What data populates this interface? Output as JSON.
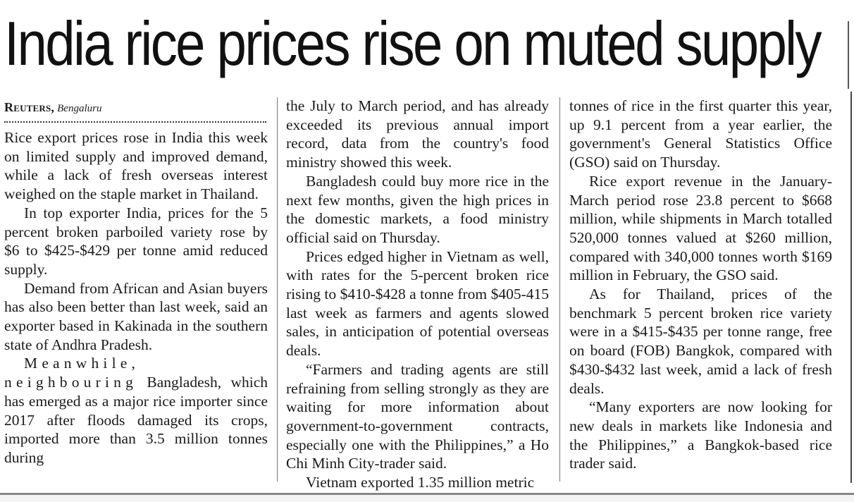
{
  "article": {
    "headline": "India rice prices rise on muted supply",
    "byline_agency": "Reuters,",
    "byline_city": "Bengaluru"
  },
  "col1": {
    "p1": "Rice export prices rose in India this week on limited supply and improved demand, while a lack of fresh overseas interest weighed on the staple market in Thailand.",
    "p2": "In top exporter India, prices for the 5 percent broken parboiled variety rose by $6 to $425-$429 per tonne amid reduced supply.",
    "p3": "Demand from African and Asian buyers has also been better than last week, said an exporter based in Kakinada in the southern state of Andhra Pradesh.",
    "p4_lead": "Meanwhile, neighbouring",
    "p4_rest": "Bangladesh, which has emerged as a major rice importer since 2017 after floods damaged its crops, imported more than 3.5 million tonnes during"
  },
  "col2": {
    "p1": "the July to March period, and has already exceeded its previous annual import record, data from the country's food ministry showed this week.",
    "p2": "Bangladesh could buy more rice in the next few months, given the high prices in the domestic markets, a food ministry official said on Thursday.",
    "p3": "Prices edged higher in Vietnam as well, with rates for the 5-percent broken rice rising to $410-$428 a tonne from $405-415 last week as farmers and agents slowed sales, in anticipation of potential overseas deals.",
    "p4": "“Farmers and trading agents are still refraining from selling strongly as they are waiting for more information about government-to-government contracts, especially one with the Philippines,” a Ho Chi Minh City-trader said.",
    "p5": "Vietnam exported 1.35 million metric"
  },
  "col3": {
    "p1": "tonnes of rice in the first quarter this year, up 9.1 percent from a year earlier, the government's General Statistics Office (GSO) said on Thursday.",
    "p2": "Rice export revenue in the January-March period rose 23.8 percent to $668 million, while shipments in March totalled 520,000 tonnes valued at $260 million, compared with 340,000 tonnes worth $169 million in February, the GSO said.",
    "p3": "As for Thailand, prices of the benchmark 5 percent broken rice variety were in a $415-$435 per tonne range, free on board (FOB) Bangkok, compared with $430-$432 last week, amid a lack of fresh deals.",
    "p4": "“Many exporters are now looking for new deals in markets like Indonesia and the Philippines,” a Bangkok-based rice trader said."
  }
}
